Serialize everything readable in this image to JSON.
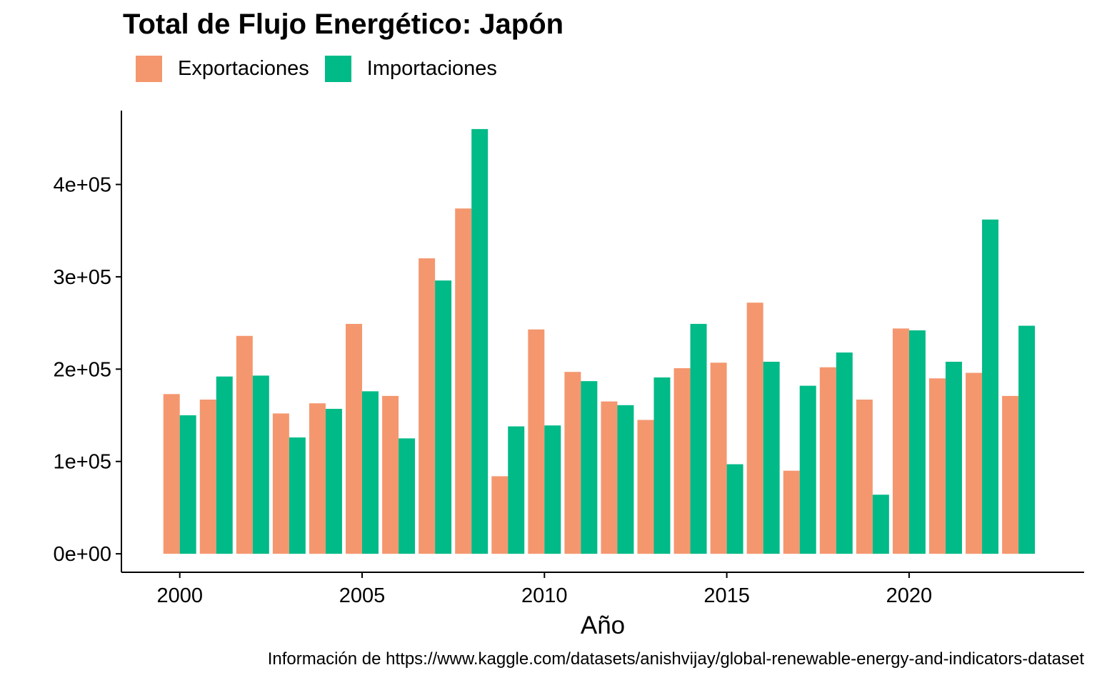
{
  "chart_data": {
    "type": "bar",
    "title": "Total de Flujo Energético: Japón",
    "xlabel": "Año",
    "ylabel": "",
    "caption": "Información de https://www.kaggle.com/datasets/anishvijay/global-renewable-energy-and-indicators-dataset",
    "x": [
      2000,
      2001,
      2002,
      2003,
      2004,
      2005,
      2006,
      2007,
      2008,
      2009,
      2010,
      2011,
      2012,
      2013,
      2014,
      2015,
      2016,
      2017,
      2018,
      2019,
      2020,
      2021,
      2022,
      2023
    ],
    "xticks": [
      "2000",
      "2005",
      "2010",
      "2015",
      "2020"
    ],
    "yticks": [
      "0e+00",
      "1e+05",
      "2e+05",
      "3e+05",
      "4e+05"
    ],
    "ytick_values": [
      0,
      100000,
      200000,
      300000,
      400000
    ],
    "ylim": [
      -20000,
      480000
    ],
    "xlim": [
      1998.4,
      2024.8
    ],
    "legend_position": "top-left",
    "grid": false,
    "series": [
      {
        "name": "Exportaciones",
        "color": "#F4976F",
        "values": [
          173000,
          167000,
          236000,
          152000,
          163000,
          249000,
          171000,
          320000,
          374000,
          84000,
          243000,
          197000,
          165000,
          145000,
          201000,
          207000,
          272000,
          90000,
          202000,
          167000,
          244000,
          190000,
          196000,
          171000
        ]
      },
      {
        "name": "Importaciones",
        "color": "#00BA87",
        "values": [
          150000,
          192000,
          193000,
          126000,
          157000,
          176000,
          125000,
          296000,
          460000,
          138000,
          139000,
          187000,
          161000,
          191000,
          249000,
          97000,
          208000,
          182000,
          218000,
          64000,
          242000,
          208000,
          362000,
          247000
        ]
      }
    ]
  }
}
